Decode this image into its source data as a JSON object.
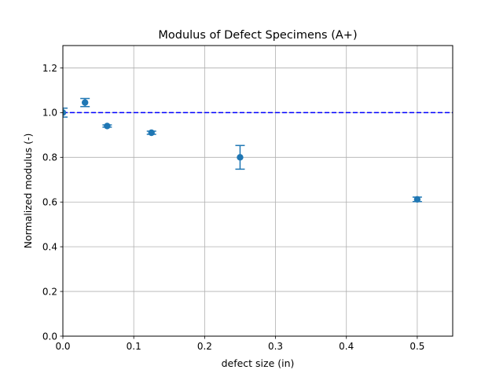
{
  "chart_data": {
    "type": "scatter",
    "title": "Modulus of Defect Specimens (A+)",
    "xlabel": "defect size (in)",
    "ylabel": "Normalized modulus (-)",
    "xlim": [
      0,
      0.55
    ],
    "ylim": [
      0,
      1.3
    ],
    "xticks": [
      0,
      0.1,
      0.2,
      0.3,
      0.4,
      0.5
    ],
    "xtick_labels": [
      "0.0",
      "0.1",
      "0.2",
      "0.3",
      "0.4",
      "0.5"
    ],
    "yticks": [
      0,
      0.2,
      0.4,
      0.6,
      0.8,
      1.0,
      1.2
    ],
    "ytick_labels": [
      "0.0",
      "0.2",
      "0.4",
      "0.6",
      "0.8",
      "1.0",
      "1.2"
    ],
    "grid": true,
    "series": [
      {
        "name": "specimens",
        "color": "#1f77b4",
        "x": [
          0,
          0.03125,
          0.0625,
          0.125,
          0.25,
          0.5
        ],
        "y": [
          1.0,
          1.045,
          0.94,
          0.91,
          0.8,
          0.612
        ],
        "yerr": [
          0.02,
          0.018,
          0.005,
          0.007,
          0.053,
          0.01
        ]
      }
    ],
    "reference_line": {
      "y": 1.0,
      "style": "dashed",
      "color": "#0000ff"
    }
  }
}
